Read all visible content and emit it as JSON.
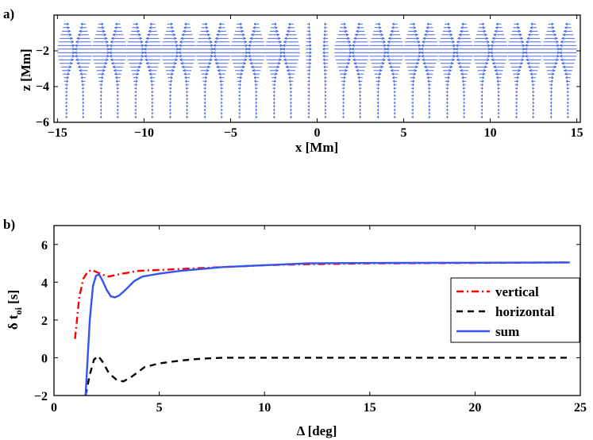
{
  "chart_data": [
    {
      "type": "quiver",
      "panel_label": "a)",
      "xlabel": "x [Mm]",
      "ylabel": "z [Mm]",
      "xlim": [
        -15.2,
        15.2
      ],
      "ylim": [
        -6,
        0
      ],
      "xticks": [
        -15,
        -10,
        -5,
        0,
        5,
        10,
        15
      ],
      "yticks": [
        -6,
        -4,
        -2
      ],
      "xtick_labels": [
        "−15",
        "−10",
        "−5",
        "0",
        "5",
        "10",
        "15"
      ],
      "ytick_labels": [
        "−6",
        "−4",
        "−2"
      ],
      "column_x": [
        -14.5,
        -13.5,
        -12.5,
        -11.5,
        -10.5,
        -9.5,
        -8.5,
        -7.5,
        -6.5,
        -5.5,
        -4.5,
        -3.5,
        -2.5,
        -1.5,
        -0.5,
        0.5,
        1.5,
        2.5,
        3.5,
        4.5,
        5.5,
        6.5,
        7.5,
        8.5,
        9.5,
        10.5,
        11.5,
        12.5,
        13.5,
        14.5
      ],
      "row_z": [
        -0.5,
        -0.7,
        -0.9,
        -1.1,
        -1.3,
        -1.5,
        -1.7,
        -1.9,
        -2.1,
        -2.3,
        -2.5,
        -2.7,
        -2.9,
        -3.1,
        -3.3,
        -3.5,
        -3.7,
        -3.9,
        -4.1,
        -4.3,
        -4.5,
        -4.7,
        -4.9,
        -5.1,
        -5.3,
        -5.5,
        -5.7
      ],
      "color": "#3355dd"
    },
    {
      "type": "line",
      "panel_label": "b)",
      "xlabel": "Δ [deg]",
      "ylabel_main": "δ t",
      "ylabel_sub": "oi",
      "ylabel_unit": " [s]",
      "xlim": [
        0,
        25
      ],
      "ylim": [
        -2,
        7
      ],
      "xticks": [
        0,
        5,
        10,
        15,
        20,
        25
      ],
      "yticks": [
        -2,
        0,
        2,
        4,
        6
      ],
      "xtick_labels": [
        "0",
        "5",
        "10",
        "15",
        "20",
        "25"
      ],
      "ytick_labels": [
        "−2",
        "0",
        "2",
        "4",
        "6"
      ],
      "legend_position": "right",
      "series": [
        {
          "name": "vertical",
          "color": "#ff0000",
          "dash": "dashdot",
          "x": [
            1.0,
            1.2,
            1.4,
            1.6,
            1.8,
            2.0,
            2.3,
            2.6,
            3.0,
            3.5,
            4.0,
            5.0,
            6.0,
            7.0,
            8.0,
            10.0,
            12.0,
            15.0,
            20.0,
            24.5
          ],
          "y": [
            1.0,
            3.2,
            4.2,
            4.55,
            4.65,
            4.55,
            4.4,
            4.3,
            4.4,
            4.5,
            4.6,
            4.65,
            4.7,
            4.75,
            4.8,
            4.9,
            4.95,
            5.0,
            5.02,
            5.05
          ]
        },
        {
          "name": "horizontal",
          "color": "#000000",
          "dash": "dashed",
          "x": [
            1.5,
            1.7,
            1.9,
            2.1,
            2.3,
            2.6,
            3.0,
            3.3,
            3.7,
            4.3,
            5.0,
            6.0,
            7.0,
            8.0,
            10.0,
            15.0,
            20.0,
            24.5
          ],
          "y": [
            -2.0,
            -0.9,
            -0.1,
            0.1,
            -0.2,
            -0.8,
            -1.2,
            -1.25,
            -1.0,
            -0.5,
            -0.3,
            -0.15,
            -0.05,
            0.0,
            0.0,
            0.0,
            0.0,
            0.0
          ]
        },
        {
          "name": "sum",
          "color": "#3355ee",
          "dash": "solid",
          "x": [
            1.5,
            1.7,
            1.85,
            2.0,
            2.15,
            2.3,
            2.5,
            2.7,
            2.9,
            3.1,
            3.4,
            3.8,
            4.2,
            5.0,
            6.0,
            7.0,
            8.0,
            10.0,
            12.0,
            15.0,
            20.0,
            24.5
          ],
          "y": [
            -2.0,
            2.0,
            3.8,
            4.35,
            4.4,
            4.1,
            3.6,
            3.25,
            3.2,
            3.3,
            3.6,
            4.05,
            4.3,
            4.45,
            4.6,
            4.7,
            4.8,
            4.9,
            5.0,
            5.02,
            5.03,
            5.05
          ]
        }
      ]
    }
  ]
}
